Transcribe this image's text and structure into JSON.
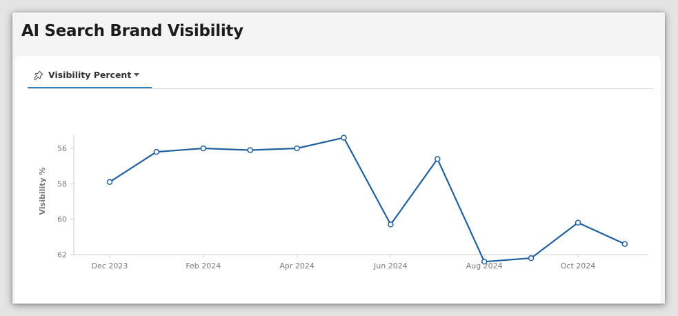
{
  "page": {
    "title": "AI Search Brand Visibility"
  },
  "tabs": [
    {
      "label": "Visibility Percent",
      "icon": "pin-icon",
      "dropdown_icon": "caret-down-icon",
      "active": true
    }
  ],
  "colors": {
    "accent": "#2f7fc1",
    "series_line": "#1f5f9e",
    "axis": "#cfcfcf"
  },
  "chart_data": {
    "type": "line",
    "ylabel": "Visibility %",
    "xlabel": "",
    "y_axis_reversed": true,
    "ylim": [
      55.1,
      62
    ],
    "yticks": [
      56,
      58,
      60,
      62
    ],
    "x_ticks": [
      "Dec 2023",
      "Feb 2024",
      "Apr 2024",
      "Jun 2024",
      "Aug 2024",
      "Oct 2024"
    ],
    "x_tick_indices": [
      0,
      2,
      4,
      6,
      8,
      10
    ],
    "x": [
      "Dec 2023",
      "Jan 2024",
      "Feb 2024",
      "Mar 2024",
      "Apr 2024",
      "May 2024",
      "Jun 2024",
      "Jul 2024",
      "Aug 2024",
      "Sep 2024",
      "Oct 2024",
      "Nov 2024"
    ],
    "series": [
      {
        "values": [
          57.9,
          56.2,
          56.0,
          56.1,
          56.0,
          55.4,
          60.3,
          56.6,
          62.4,
          62.2,
          60.2,
          61.4
        ]
      }
    ],
    "grid": false,
    "markers": "hollow-circle"
  }
}
